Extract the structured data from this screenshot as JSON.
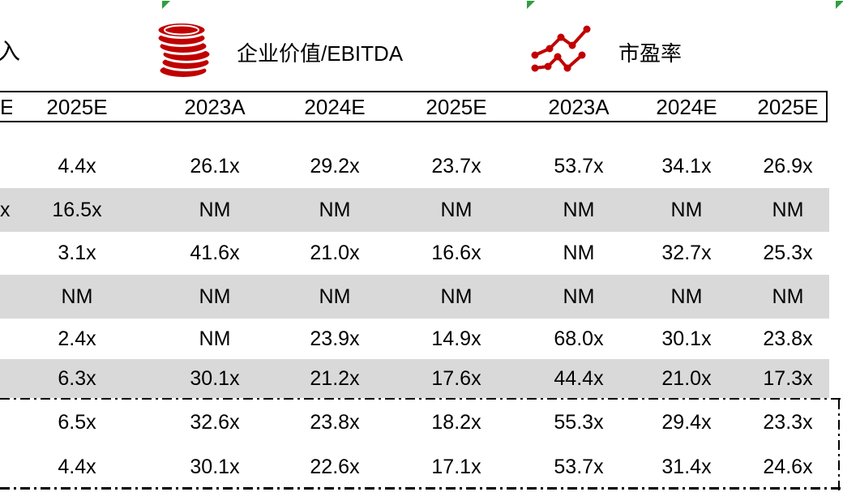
{
  "colors": {
    "red": "#c00000",
    "green": "#2f9e3f",
    "row_shade": "#d9d9d9",
    "text": "#000000",
    "border": "#000000"
  },
  "legend": {
    "left_partial": "入",
    "items": [
      {
        "icon": "coins-icon",
        "label": "企业价值/EBITDA"
      },
      {
        "icon": "line-chart-icon",
        "label": "市盈率"
      }
    ]
  },
  "table": {
    "header": {
      "left_partial": "E",
      "columns": [
        "2025E",
        "2023A",
        "2024E",
        "2025E",
        "2023A",
        "2024E",
        "2025E"
      ]
    },
    "rows": [
      {
        "left_partial": "",
        "shaded": false,
        "values": [
          "4.4x",
          "26.1x",
          "29.2x",
          "23.7x",
          "53.7x",
          "34.1x",
          "26.9x"
        ]
      },
      {
        "left_partial": "x",
        "shaded": true,
        "values": [
          "16.5x",
          "NM",
          "NM",
          "NM",
          "NM",
          "NM",
          "NM"
        ]
      },
      {
        "left_partial": "",
        "shaded": false,
        "values": [
          "3.1x",
          "41.6x",
          "21.0x",
          "16.6x",
          "NM",
          "32.7x",
          "25.3x"
        ]
      },
      {
        "left_partial": "",
        "shaded": true,
        "values": [
          "NM",
          "NM",
          "NM",
          "NM",
          "NM",
          "NM",
          "NM"
        ]
      },
      {
        "left_partial": "",
        "shaded": false,
        "values": [
          "2.4x",
          "NM",
          "23.9x",
          "14.9x",
          "68.0x",
          "30.1x",
          "23.8x"
        ]
      },
      {
        "left_partial": "",
        "shaded": true,
        "values": [
          "6.3x",
          "30.1x",
          "21.2x",
          "17.6x",
          "44.4x",
          "21.0x",
          "17.3x"
        ]
      },
      {
        "left_partial": "",
        "shaded": false,
        "values": [
          "6.5x",
          "32.6x",
          "23.8x",
          "18.2x",
          "55.3x",
          "29.4x",
          "23.3x"
        ]
      },
      {
        "left_partial": "",
        "shaded": false,
        "values": [
          "4.4x",
          "30.1x",
          "22.6x",
          "17.1x",
          "53.7x",
          "31.4x",
          "24.6x"
        ]
      }
    ]
  }
}
